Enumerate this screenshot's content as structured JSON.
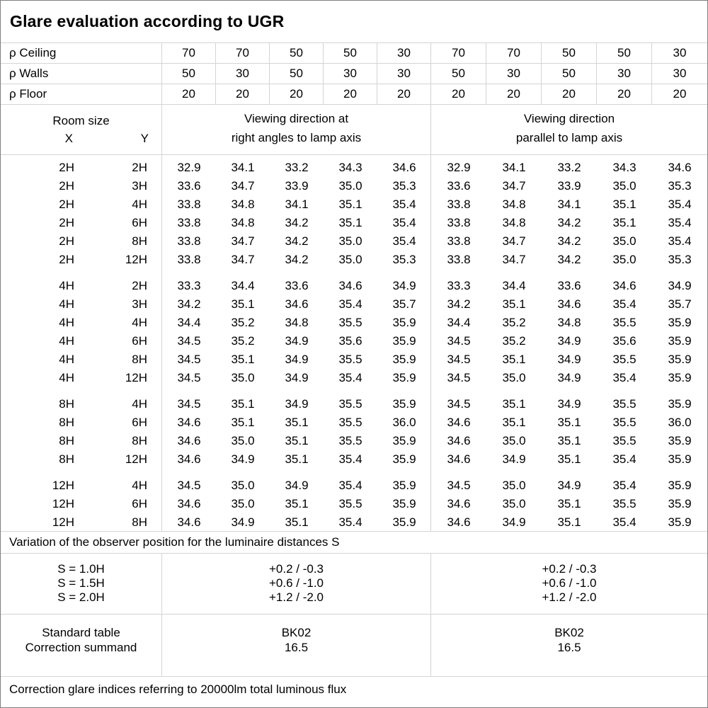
{
  "title": "Glare evaluation according to UGR",
  "colors": {
    "background": "#ffffff",
    "text": "#000000",
    "grid_line": "#d4d4d4",
    "outer_border": "#7f7f7f"
  },
  "reflectances": {
    "rows": [
      {
        "label": "ρ Ceiling",
        "values": [
          "70",
          "70",
          "50",
          "50",
          "30",
          "70",
          "70",
          "50",
          "50",
          "30"
        ]
      },
      {
        "label": "ρ Walls",
        "values": [
          "50",
          "30",
          "50",
          "30",
          "30",
          "50",
          "30",
          "50",
          "30",
          "30"
        ]
      },
      {
        "label": "ρ Floor",
        "values": [
          "20",
          "20",
          "20",
          "20",
          "20",
          "20",
          "20",
          "20",
          "20",
          "20"
        ]
      }
    ]
  },
  "headers": {
    "room_size": "Room size",
    "x": "X",
    "y": "Y",
    "left_group_line1": "Viewing direction at",
    "left_group_line2": "right angles to lamp axis",
    "right_group_line1": "Viewing direction",
    "right_group_line2": "parallel to lamp axis"
  },
  "ugr_table": {
    "groups": [
      {
        "rows": [
          {
            "x": "2H",
            "y": "2H",
            "left": [
              "32.9",
              "34.1",
              "33.2",
              "34.3",
              "34.6"
            ],
            "right": [
              "32.9",
              "34.1",
              "33.2",
              "34.3",
              "34.6"
            ]
          },
          {
            "x": "2H",
            "y": "3H",
            "left": [
              "33.6",
              "34.7",
              "33.9",
              "35.0",
              "35.3"
            ],
            "right": [
              "33.6",
              "34.7",
              "33.9",
              "35.0",
              "35.3"
            ]
          },
          {
            "x": "2H",
            "y": "4H",
            "left": [
              "33.8",
              "34.8",
              "34.1",
              "35.1",
              "35.4"
            ],
            "right": [
              "33.8",
              "34.8",
              "34.1",
              "35.1",
              "35.4"
            ]
          },
          {
            "x": "2H",
            "y": "6H",
            "left": [
              "33.8",
              "34.8",
              "34.2",
              "35.1",
              "35.4"
            ],
            "right": [
              "33.8",
              "34.8",
              "34.2",
              "35.1",
              "35.4"
            ]
          },
          {
            "x": "2H",
            "y": "8H",
            "left": [
              "33.8",
              "34.7",
              "34.2",
              "35.0",
              "35.4"
            ],
            "right": [
              "33.8",
              "34.7",
              "34.2",
              "35.0",
              "35.4"
            ]
          },
          {
            "x": "2H",
            "y": "12H",
            "left": [
              "33.8",
              "34.7",
              "34.2",
              "35.0",
              "35.3"
            ],
            "right": [
              "33.8",
              "34.7",
              "34.2",
              "35.0",
              "35.3"
            ]
          }
        ]
      },
      {
        "rows": [
          {
            "x": "4H",
            "y": "2H",
            "left": [
              "33.3",
              "34.4",
              "33.6",
              "34.6",
              "34.9"
            ],
            "right": [
              "33.3",
              "34.4",
              "33.6",
              "34.6",
              "34.9"
            ]
          },
          {
            "x": "4H",
            "y": "3H",
            "left": [
              "34.2",
              "35.1",
              "34.6",
              "35.4",
              "35.7"
            ],
            "right": [
              "34.2",
              "35.1",
              "34.6",
              "35.4",
              "35.7"
            ]
          },
          {
            "x": "4H",
            "y": "4H",
            "left": [
              "34.4",
              "35.2",
              "34.8",
              "35.5",
              "35.9"
            ],
            "right": [
              "34.4",
              "35.2",
              "34.8",
              "35.5",
              "35.9"
            ]
          },
          {
            "x": "4H",
            "y": "6H",
            "left": [
              "34.5",
              "35.2",
              "34.9",
              "35.6",
              "35.9"
            ],
            "right": [
              "34.5",
              "35.2",
              "34.9",
              "35.6",
              "35.9"
            ]
          },
          {
            "x": "4H",
            "y": "8H",
            "left": [
              "34.5",
              "35.1",
              "34.9",
              "35.5",
              "35.9"
            ],
            "right": [
              "34.5",
              "35.1",
              "34.9",
              "35.5",
              "35.9"
            ]
          },
          {
            "x": "4H",
            "y": "12H",
            "left": [
              "34.5",
              "35.0",
              "34.9",
              "35.4",
              "35.9"
            ],
            "right": [
              "34.5",
              "35.0",
              "34.9",
              "35.4",
              "35.9"
            ]
          }
        ]
      },
      {
        "rows": [
          {
            "x": "8H",
            "y": "4H",
            "left": [
              "34.5",
              "35.1",
              "34.9",
              "35.5",
              "35.9"
            ],
            "right": [
              "34.5",
              "35.1",
              "34.9",
              "35.5",
              "35.9"
            ]
          },
          {
            "x": "8H",
            "y": "6H",
            "left": [
              "34.6",
              "35.1",
              "35.1",
              "35.5",
              "36.0"
            ],
            "right": [
              "34.6",
              "35.1",
              "35.1",
              "35.5",
              "36.0"
            ]
          },
          {
            "x": "8H",
            "y": "8H",
            "left": [
              "34.6",
              "35.0",
              "35.1",
              "35.5",
              "35.9"
            ],
            "right": [
              "34.6",
              "35.0",
              "35.1",
              "35.5",
              "35.9"
            ]
          },
          {
            "x": "8H",
            "y": "12H",
            "left": [
              "34.6",
              "34.9",
              "35.1",
              "35.4",
              "35.9"
            ],
            "right": [
              "34.6",
              "34.9",
              "35.1",
              "35.4",
              "35.9"
            ]
          }
        ]
      },
      {
        "rows": [
          {
            "x": "12H",
            "y": "4H",
            "left": [
              "34.5",
              "35.0",
              "34.9",
              "35.4",
              "35.9"
            ],
            "right": [
              "34.5",
              "35.0",
              "34.9",
              "35.4",
              "35.9"
            ]
          },
          {
            "x": "12H",
            "y": "6H",
            "left": [
              "34.6",
              "35.0",
              "35.1",
              "35.5",
              "35.9"
            ],
            "right": [
              "34.6",
              "35.0",
              "35.1",
              "35.5",
              "35.9"
            ]
          },
          {
            "x": "12H",
            "y": "8H",
            "left": [
              "34.6",
              "34.9",
              "35.1",
              "35.4",
              "35.9"
            ],
            "right": [
              "34.6",
              "34.9",
              "35.1",
              "35.4",
              "35.9"
            ]
          }
        ]
      }
    ]
  },
  "variation_note": "Variation of the observer position for the luminaire distances S",
  "spacing_section": {
    "rows": [
      {
        "label": "S = 1.0H",
        "left": "+0.2 / -0.3",
        "right": "+0.2 / -0.3"
      },
      {
        "label": "S = 1.5H",
        "left": "+0.6 / -1.0",
        "right": "+0.6 / -1.0"
      },
      {
        "label": "S = 2.0H",
        "left": "+1.2 / -2.0",
        "right": "+1.2 / -2.0"
      }
    ]
  },
  "correction_section": {
    "rows": [
      {
        "label": "Standard table",
        "left": "BK02",
        "right": "BK02"
      },
      {
        "label": "Correction summand",
        "left": "16.5",
        "right": "16.5"
      }
    ]
  },
  "footer_note": "Correction glare indices referring to 20000lm total luminous flux"
}
